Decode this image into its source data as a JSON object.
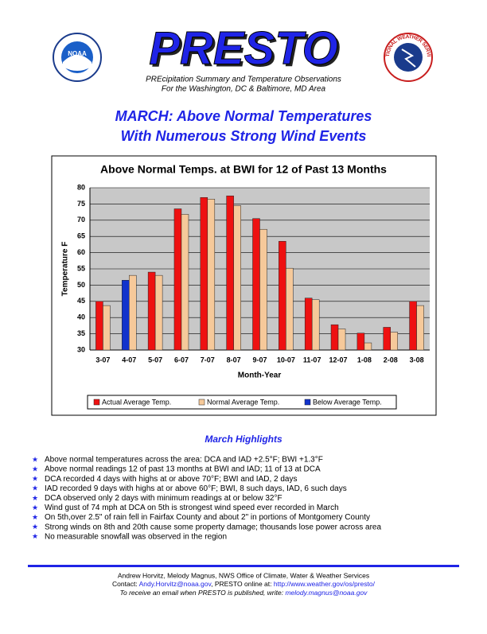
{
  "header": {
    "title": "PRESTO",
    "subtitle_1": "PREcipitation Summary and Temperature Observations",
    "subtitle_2": "For the Washington, DC & Baltimore, MD Area",
    "logo_left": "NOAA",
    "logo_right": "NATIONAL WEATHER SERVICE"
  },
  "headline": {
    "line_1": "MARCH: Above Normal Temperatures",
    "line_2": "With Numerous Strong Wind Events"
  },
  "chart_data": {
    "type": "bar",
    "title": "Above Normal Temps. at BWI for 12 of Past 13 Months",
    "categories": [
      "3-07",
      "4-07",
      "5-07",
      "6-07",
      "7-07",
      "8-07",
      "9-07",
      "10-07",
      "11-07",
      "12-07",
      "1-08",
      "2-08",
      "3-08"
    ],
    "series": [
      {
        "name": "Actual Average Temp.",
        "color": "#ee1111",
        "values": [
          45,
          null,
          54,
          73.5,
          77,
          77.5,
          70.5,
          63.5,
          46,
          37.8,
          35.2,
          37,
          45
        ]
      },
      {
        "name": "Normal Average Temp.",
        "color": "#f6c99a",
        "values": [
          43.7,
          53,
          53,
          71.8,
          76.5,
          74.5,
          67.2,
          55.2,
          45.5,
          36.5,
          32.2,
          35.5,
          43.7
        ]
      },
      {
        "name": "Below Average Temp.",
        "color": "#1133cc",
        "values": [
          null,
          51.5,
          null,
          null,
          null,
          null,
          null,
          null,
          null,
          null,
          null,
          null,
          null
        ]
      }
    ],
    "ylim": [
      30,
      80
    ],
    "yticks": [
      30,
      35,
      40,
      45,
      50,
      55,
      60,
      65,
      70,
      75,
      80
    ],
    "grid": true,
    "ylabel": "Temperature F",
    "xlabel": "Month-Year"
  },
  "highlights": {
    "title": "March Highlights",
    "items": [
      "Above normal temperatures across the area: DCA and IAD +2.5°F; BWI +1.3°F",
      "Above normal readings 12 of past 13 months at BWI and IAD; 11 of 13 at DCA",
      "DCA recorded 4 days with highs at or above 70°F; BWI and IAD, 2 days",
      "IAD recorded 9 days with highs at or above 60°F; BWI, 8 such days, IAD, 6 such days",
      "DCA observed only 2 days with minimum readings at or below 32°F",
      "Wind gust of 74 mph at DCA on 5th is strongest wind speed ever recorded in March",
      "On 5th,over 2.5\" of rain fell in Fairfax County and about 2\" in portions of Montgomery County",
      "Strong winds on 8th and 20th cause some property damage; thousands lose power across area",
      "No measurable snowfall was observed in the region"
    ]
  },
  "footer": {
    "line_1": "Andrew Horvitz, Melody Magnus, NWS Office of Climate, Water & Weather Services",
    "contact_label": "Contact:",
    "contact_email": "Andy.Horvitz@noaa.gov",
    "online_label": ", PRESTO online at:",
    "url": "http://www.weather.gov/os/presto/",
    "line_3_label": "To receive an email when PRESTO is published, write:",
    "line_3_email": "melody.magnus@noaa.gov"
  }
}
